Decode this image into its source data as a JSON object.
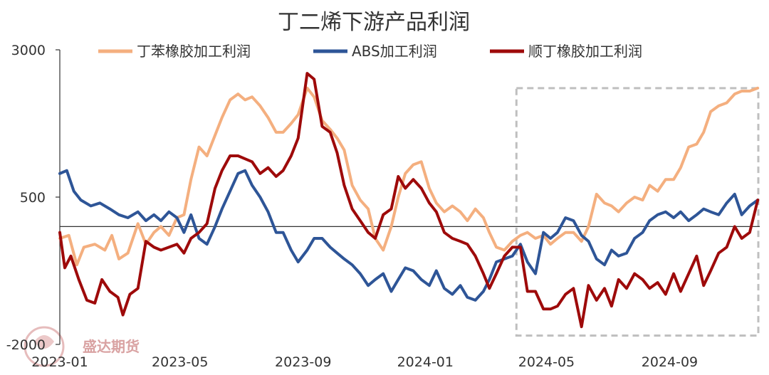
{
  "chart_data": {
    "type": "line",
    "title": "丁二烯下游产品利润",
    "xlabel": "",
    "ylabel": "",
    "ylim": [
      -2000,
      3000
    ],
    "yticks": [
      3000,
      500,
      -2000
    ],
    "x_start": "2023-01-01",
    "x_end": "2024-11-30",
    "xticks": [
      {
        "label": "2023-01",
        "date": "2023-01-01"
      },
      {
        "label": "2023-05",
        "date": "2023-05-01"
      },
      {
        "label": "2023-09",
        "date": "2023-09-01"
      },
      {
        "label": "2024-01",
        "date": "2024-01-01"
      },
      {
        "label": "2024-05",
        "date": "2024-05-01"
      },
      {
        "label": "2024-09",
        "date": "2024-09-01"
      }
    ],
    "zero_line": 0,
    "grid": false,
    "legend_position": "top",
    "highlight_box": {
      "x_start": "2024-04-01",
      "x_end": "2024-11-30",
      "y_top": 2350,
      "y_bottom": -1850
    },
    "watermark": "盛达期货",
    "series": [
      {
        "name": "丁苯橡胶加工利润",
        "color": "#F4AF7F",
        "points": [
          [
            "2023-01-01",
            -200
          ],
          [
            "2023-01-10",
            -150
          ],
          [
            "2023-01-18",
            -650
          ],
          [
            "2023-01-25",
            -350
          ],
          [
            "2023-02-05",
            -300
          ],
          [
            "2023-02-15",
            -400
          ],
          [
            "2023-02-22",
            -150
          ],
          [
            "2023-03-01",
            -550
          ],
          [
            "2023-03-10",
            -450
          ],
          [
            "2023-03-20",
            50
          ],
          [
            "2023-03-28",
            -300
          ],
          [
            "2023-04-05",
            -100
          ],
          [
            "2023-04-12",
            0
          ],
          [
            "2023-04-20",
            -150
          ],
          [
            "2023-04-28",
            150
          ],
          [
            "2023-05-05",
            200
          ],
          [
            "2023-05-12",
            800
          ],
          [
            "2023-05-20",
            1350
          ],
          [
            "2023-05-28",
            1200
          ],
          [
            "2023-06-05",
            1550
          ],
          [
            "2023-06-12",
            1850
          ],
          [
            "2023-06-20",
            2150
          ],
          [
            "2023-06-28",
            2250
          ],
          [
            "2023-07-05",
            2150
          ],
          [
            "2023-07-12",
            2200
          ],
          [
            "2023-07-20",
            2050
          ],
          [
            "2023-07-28",
            1850
          ],
          [
            "2023-08-05",
            1600
          ],
          [
            "2023-08-12",
            1600
          ],
          [
            "2023-08-20",
            1750
          ],
          [
            "2023-08-27",
            1900
          ],
          [
            "2023-09-05",
            2350
          ],
          [
            "2023-09-12",
            2200
          ],
          [
            "2023-09-20",
            1800
          ],
          [
            "2023-09-28",
            1650
          ],
          [
            "2023-10-05",
            1500
          ],
          [
            "2023-10-12",
            1300
          ],
          [
            "2023-10-20",
            700
          ],
          [
            "2023-10-28",
            450
          ],
          [
            "2023-11-05",
            300
          ],
          [
            "2023-11-12",
            -200
          ],
          [
            "2023-11-20",
            -400
          ],
          [
            "2023-11-28",
            0
          ],
          [
            "2023-12-05",
            500
          ],
          [
            "2023-12-12",
            900
          ],
          [
            "2023-12-20",
            1050
          ],
          [
            "2023-12-28",
            1100
          ],
          [
            "2024-01-05",
            650
          ],
          [
            "2024-01-12",
            400
          ],
          [
            "2024-01-20",
            250
          ],
          [
            "2024-01-28",
            350
          ],
          [
            "2024-02-05",
            250
          ],
          [
            "2024-02-12",
            100
          ],
          [
            "2024-02-20",
            300
          ],
          [
            "2024-02-28",
            150
          ],
          [
            "2024-03-05",
            -100
          ],
          [
            "2024-03-12",
            -350
          ],
          [
            "2024-03-20",
            -400
          ],
          [
            "2024-03-28",
            -250
          ],
          [
            "2024-04-05",
            -150
          ],
          [
            "2024-04-12",
            -100
          ],
          [
            "2024-04-20",
            -200
          ],
          [
            "2024-04-28",
            -150
          ],
          [
            "2024-05-05",
            -300
          ],
          [
            "2024-05-12",
            -200
          ],
          [
            "2024-05-20",
            -100
          ],
          [
            "2024-05-28",
            -100
          ],
          [
            "2024-06-05",
            -250
          ],
          [
            "2024-06-12",
            0
          ],
          [
            "2024-06-20",
            550
          ],
          [
            "2024-06-28",
            400
          ],
          [
            "2024-07-05",
            350
          ],
          [
            "2024-07-12",
            250
          ],
          [
            "2024-07-20",
            400
          ],
          [
            "2024-07-28",
            500
          ],
          [
            "2024-08-05",
            450
          ],
          [
            "2024-08-12",
            700
          ],
          [
            "2024-08-20",
            600
          ],
          [
            "2024-08-28",
            800
          ],
          [
            "2024-09-05",
            800
          ],
          [
            "2024-09-12",
            1000
          ],
          [
            "2024-09-20",
            1350
          ],
          [
            "2024-09-28",
            1400
          ],
          [
            "2024-10-05",
            1600
          ],
          [
            "2024-10-12",
            1950
          ],
          [
            "2024-10-20",
            2050
          ],
          [
            "2024-10-28",
            2100
          ],
          [
            "2024-11-05",
            2250
          ],
          [
            "2024-11-12",
            2300
          ],
          [
            "2024-11-20",
            2300
          ],
          [
            "2024-11-28",
            2350
          ]
        ]
      },
      {
        "name": "ABS加工利润",
        "color": "#2E5597",
        "points": [
          [
            "2023-01-01",
            900
          ],
          [
            "2023-01-08",
            950
          ],
          [
            "2023-01-15",
            600
          ],
          [
            "2023-01-22",
            450
          ],
          [
            "2023-02-01",
            350
          ],
          [
            "2023-02-10",
            400
          ],
          [
            "2023-02-20",
            300
          ],
          [
            "2023-03-01",
            200
          ],
          [
            "2023-03-10",
            150
          ],
          [
            "2023-03-20",
            250
          ],
          [
            "2023-03-28",
            100
          ],
          [
            "2023-04-05",
            200
          ],
          [
            "2023-04-12",
            100
          ],
          [
            "2023-04-20",
            250
          ],
          [
            "2023-04-28",
            150
          ],
          [
            "2023-05-05",
            -100
          ],
          [
            "2023-05-12",
            200
          ],
          [
            "2023-05-20",
            -200
          ],
          [
            "2023-05-28",
            -300
          ],
          [
            "2023-06-05",
            0
          ],
          [
            "2023-06-12",
            300
          ],
          [
            "2023-06-20",
            600
          ],
          [
            "2023-06-28",
            900
          ],
          [
            "2023-07-05",
            950
          ],
          [
            "2023-07-12",
            700
          ],
          [
            "2023-07-20",
            500
          ],
          [
            "2023-07-28",
            250
          ],
          [
            "2023-08-05",
            -100
          ],
          [
            "2023-08-12",
            -100
          ],
          [
            "2023-08-20",
            -400
          ],
          [
            "2023-08-27",
            -600
          ],
          [
            "2023-09-05",
            -400
          ],
          [
            "2023-09-12",
            -200
          ],
          [
            "2023-09-20",
            -200
          ],
          [
            "2023-09-28",
            -350
          ],
          [
            "2023-10-05",
            -450
          ],
          [
            "2023-10-12",
            -550
          ],
          [
            "2023-10-20",
            -650
          ],
          [
            "2023-10-28",
            -800
          ],
          [
            "2023-11-05",
            -1000
          ],
          [
            "2023-11-12",
            -900
          ],
          [
            "2023-11-20",
            -800
          ],
          [
            "2023-11-28",
            -1100
          ],
          [
            "2023-12-05",
            -900
          ],
          [
            "2023-12-12",
            -700
          ],
          [
            "2023-12-20",
            -750
          ],
          [
            "2023-12-28",
            -900
          ],
          [
            "2024-01-05",
            -1000
          ],
          [
            "2024-01-12",
            -750
          ],
          [
            "2024-01-20",
            -1050
          ],
          [
            "2024-01-28",
            -1150
          ],
          [
            "2024-02-05",
            -1000
          ],
          [
            "2024-02-12",
            -1200
          ],
          [
            "2024-02-20",
            -1250
          ],
          [
            "2024-02-28",
            -1100
          ],
          [
            "2024-03-05",
            -900
          ],
          [
            "2024-03-12",
            -600
          ],
          [
            "2024-03-20",
            -550
          ],
          [
            "2024-03-28",
            -500
          ],
          [
            "2024-04-05",
            -300
          ],
          [
            "2024-04-12",
            -600
          ],
          [
            "2024-04-20",
            -800
          ],
          [
            "2024-04-28",
            -100
          ],
          [
            "2024-05-05",
            -200
          ],
          [
            "2024-05-12",
            -100
          ],
          [
            "2024-05-20",
            150
          ],
          [
            "2024-05-28",
            100
          ],
          [
            "2024-06-05",
            -150
          ],
          [
            "2024-06-12",
            -250
          ],
          [
            "2024-06-20",
            -550
          ],
          [
            "2024-06-28",
            -650
          ],
          [
            "2024-07-05",
            -400
          ],
          [
            "2024-07-12",
            -500
          ],
          [
            "2024-07-20",
            -450
          ],
          [
            "2024-07-28",
            -200
          ],
          [
            "2024-08-05",
            -100
          ],
          [
            "2024-08-12",
            100
          ],
          [
            "2024-08-20",
            200
          ],
          [
            "2024-08-28",
            250
          ],
          [
            "2024-09-05",
            150
          ],
          [
            "2024-09-12",
            250
          ],
          [
            "2024-09-20",
            100
          ],
          [
            "2024-09-28",
            200
          ],
          [
            "2024-10-05",
            300
          ],
          [
            "2024-10-12",
            250
          ],
          [
            "2024-10-20",
            200
          ],
          [
            "2024-10-28",
            400
          ],
          [
            "2024-11-05",
            550
          ],
          [
            "2024-11-12",
            200
          ],
          [
            "2024-11-20",
            350
          ],
          [
            "2024-11-28",
            450
          ]
        ]
      },
      {
        "name": "顺丁橡胶加工利润",
        "color": "#9E0A0A",
        "points": [
          [
            "2023-01-01",
            -100
          ],
          [
            "2023-01-06",
            -700
          ],
          [
            "2023-01-12",
            -500
          ],
          [
            "2023-01-20",
            -900
          ],
          [
            "2023-01-28",
            -1250
          ],
          [
            "2023-02-05",
            -1300
          ],
          [
            "2023-02-12",
            -900
          ],
          [
            "2023-02-20",
            -1100
          ],
          [
            "2023-02-28",
            -1200
          ],
          [
            "2023-03-05",
            -1500
          ],
          [
            "2023-03-12",
            -1150
          ],
          [
            "2023-03-20",
            -1050
          ],
          [
            "2023-03-28",
            -250
          ],
          [
            "2023-04-05",
            -350
          ],
          [
            "2023-04-12",
            -400
          ],
          [
            "2023-04-20",
            -350
          ],
          [
            "2023-04-28",
            -300
          ],
          [
            "2023-05-05",
            -450
          ],
          [
            "2023-05-12",
            -200
          ],
          [
            "2023-05-20",
            -100
          ],
          [
            "2023-05-28",
            50
          ],
          [
            "2023-06-05",
            650
          ],
          [
            "2023-06-12",
            950
          ],
          [
            "2023-06-20",
            1200
          ],
          [
            "2023-06-28",
            1200
          ],
          [
            "2023-07-05",
            1150
          ],
          [
            "2023-07-12",
            1100
          ],
          [
            "2023-07-20",
            900
          ],
          [
            "2023-07-28",
            1000
          ],
          [
            "2023-08-05",
            850
          ],
          [
            "2023-08-12",
            950
          ],
          [
            "2023-08-20",
            1200
          ],
          [
            "2023-08-27",
            1500
          ],
          [
            "2023-09-05",
            2600
          ],
          [
            "2023-09-12",
            2500
          ],
          [
            "2023-09-20",
            1700
          ],
          [
            "2023-09-28",
            1600
          ],
          [
            "2023-10-05",
            1250
          ],
          [
            "2023-10-12",
            700
          ],
          [
            "2023-10-20",
            300
          ],
          [
            "2023-10-28",
            100
          ],
          [
            "2023-11-05",
            -100
          ],
          [
            "2023-11-12",
            -200
          ],
          [
            "2023-11-20",
            200
          ],
          [
            "2023-11-28",
            300
          ],
          [
            "2023-12-05",
            850
          ],
          [
            "2023-12-12",
            650
          ],
          [
            "2023-12-20",
            800
          ],
          [
            "2023-12-28",
            650
          ],
          [
            "2024-01-05",
            400
          ],
          [
            "2024-01-12",
            250
          ],
          [
            "2024-01-20",
            -100
          ],
          [
            "2024-01-28",
            -200
          ],
          [
            "2024-02-05",
            -250
          ],
          [
            "2024-02-12",
            -300
          ],
          [
            "2024-02-20",
            -500
          ],
          [
            "2024-02-28",
            -800
          ],
          [
            "2024-03-05",
            -1050
          ],
          [
            "2024-03-12",
            -800
          ],
          [
            "2024-03-20",
            -500
          ],
          [
            "2024-03-28",
            -350
          ],
          [
            "2024-04-05",
            -350
          ],
          [
            "2024-04-12",
            -1100
          ],
          [
            "2024-04-20",
            -1100
          ],
          [
            "2024-04-28",
            -1400
          ],
          [
            "2024-05-05",
            -1400
          ],
          [
            "2024-05-12",
            -1350
          ],
          [
            "2024-05-20",
            -1150
          ],
          [
            "2024-05-28",
            -1050
          ],
          [
            "2024-06-05",
            -1700
          ],
          [
            "2024-06-12",
            -1000
          ],
          [
            "2024-06-20",
            -1250
          ],
          [
            "2024-06-28",
            -1050
          ],
          [
            "2024-07-05",
            -1350
          ],
          [
            "2024-07-12",
            -900
          ],
          [
            "2024-07-20",
            -1050
          ],
          [
            "2024-07-28",
            -800
          ],
          [
            "2024-08-05",
            -900
          ],
          [
            "2024-08-12",
            -1050
          ],
          [
            "2024-08-20",
            -950
          ],
          [
            "2024-08-28",
            -1150
          ],
          [
            "2024-09-05",
            -800
          ],
          [
            "2024-09-12",
            -1100
          ],
          [
            "2024-09-20",
            -800
          ],
          [
            "2024-09-28",
            -500
          ],
          [
            "2024-10-05",
            -1000
          ],
          [
            "2024-10-12",
            -750
          ],
          [
            "2024-10-20",
            -450
          ],
          [
            "2024-10-28",
            -350
          ],
          [
            "2024-11-05",
            0
          ],
          [
            "2024-11-12",
            -200
          ],
          [
            "2024-11-20",
            -100
          ],
          [
            "2024-11-28",
            450
          ]
        ]
      }
    ]
  }
}
